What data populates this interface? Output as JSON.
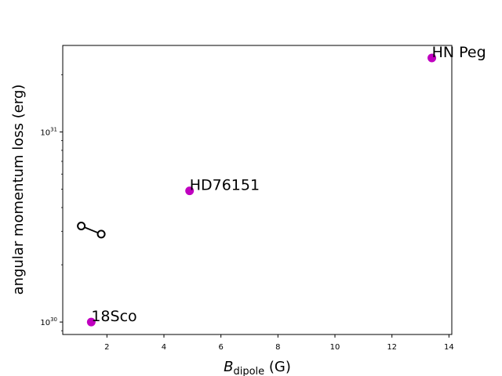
{
  "chart_data": {
    "type": "scatter",
    "title": "",
    "xlabel": {
      "main": "B",
      "sub": "dipole",
      "unit": " (G)"
    },
    "ylabel": "angular momentum loss (erg)",
    "xlim": [
      0.45,
      14.1
    ],
    "ylim": [
      8.6e+29,
      2.85e+31
    ],
    "y_scale": "log",
    "grid": false,
    "x_ticks": [
      2,
      4,
      6,
      8,
      10,
      12,
      14
    ],
    "x_tick_labels": [
      "2",
      "4",
      "6",
      "8",
      "10",
      "12",
      "14"
    ],
    "y_ticks": [
      1e+30,
      1e+31
    ],
    "y_tick_labels": [
      {
        "base": "10",
        "exp": "30"
      },
      {
        "base": "10",
        "exp": "31"
      }
    ],
    "points": [
      {
        "label": "18Sco",
        "x": 1.45,
        "y": 1e+30,
        "color": "#c000c0"
      },
      {
        "label": "HD76151",
        "x": 4.9,
        "y": 4.9e+30,
        "color": "#c000c0"
      },
      {
        "label": "HN Peg",
        "x": 13.4,
        "y": 2.45e+31,
        "color": "#c000c0"
      }
    ],
    "open_series": {
      "color": "#000000",
      "marker": "open-circle",
      "x": [
        1.1,
        1.8
      ],
      "y": [
        3.2e+30,
        2.9e+30
      ]
    }
  }
}
